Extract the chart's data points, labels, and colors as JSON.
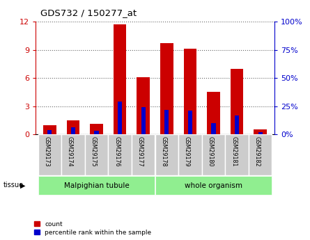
{
  "title": "GDS732 / 150277_at",
  "samples": [
    "GSM29173",
    "GSM29174",
    "GSM29175",
    "GSM29176",
    "GSM29177",
    "GSM29178",
    "GSM29179",
    "GSM29180",
    "GSM29181",
    "GSM29182"
  ],
  "counts": [
    1.0,
    1.5,
    1.1,
    11.7,
    6.1,
    9.7,
    9.1,
    4.5,
    7.0,
    0.5
  ],
  "percentiles": [
    4.0,
    6.0,
    3.5,
    29.0,
    24.0,
    22.0,
    21.0,
    10.0,
    17.0,
    2.0
  ],
  "ylim_left": [
    0,
    12
  ],
  "ylim_right": [
    0,
    100
  ],
  "yticks_left": [
    0,
    3,
    6,
    9,
    12
  ],
  "yticks_right": [
    0,
    25,
    50,
    75,
    100
  ],
  "bar_color": "#CC0000",
  "percentile_color": "#0000CC",
  "bar_width": 0.55,
  "blue_bar_width": 0.18,
  "grid_color": "#666666",
  "tick_color_left": "#CC0000",
  "tick_color_right": "#0000CC",
  "sample_box_color": "#CCCCCC",
  "tissue1_label": "Malpighian tubule",
  "tissue1_color": "#90EE90",
  "tissue1_samples": [
    0,
    1,
    2,
    3,
    4
  ],
  "tissue2_label": "whole organism",
  "tissue2_color": "#90EE90",
  "tissue2_samples": [
    5,
    6,
    7,
    8,
    9
  ]
}
